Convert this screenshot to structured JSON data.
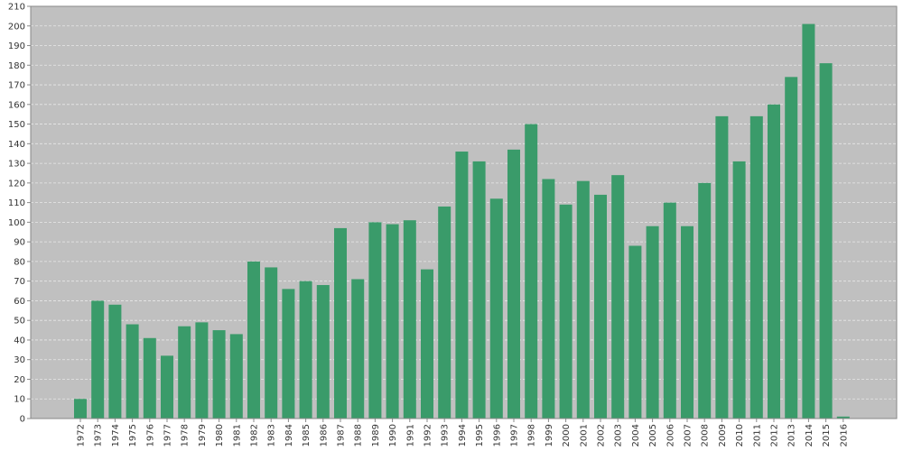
{
  "colors": {
    "plot_background": "#c0c0c0",
    "bar": "#3a9b6a",
    "grid": "#e8e8e8",
    "axis": "#888888",
    "text": "#333333"
  },
  "chart_data": {
    "type": "bar",
    "title": "",
    "xlabel": "",
    "ylabel": "",
    "ylim": [
      0,
      210
    ],
    "yticks": [
      0,
      10,
      20,
      30,
      40,
      50,
      60,
      70,
      80,
      90,
      100,
      110,
      120,
      130,
      140,
      150,
      160,
      170,
      180,
      190,
      200,
      210
    ],
    "grid": true,
    "legend": "none",
    "x_label_orientation": "vertical",
    "categories": [
      "1972",
      "1973",
      "1974",
      "1975",
      "1976",
      "1977",
      "1978",
      "1979",
      "1980",
      "1981",
      "1982",
      "1983",
      "1984",
      "1985",
      "1986",
      "1987",
      "1988",
      "1989",
      "1990",
      "1991",
      "1992",
      "1993",
      "1994",
      "1995",
      "1996",
      "1997",
      "1998",
      "1999",
      "2000",
      "2001",
      "2002",
      "2003",
      "2004",
      "2005",
      "2006",
      "2007",
      "2008",
      "2009",
      "2010",
      "2011",
      "2012",
      "2013",
      "2014",
      "2015",
      "2016"
    ],
    "values": [
      10,
      60,
      58,
      48,
      41,
      32,
      47,
      49,
      45,
      43,
      80,
      77,
      66,
      70,
      68,
      97,
      71,
      100,
      99,
      101,
      76,
      108,
      136,
      131,
      112,
      137,
      150,
      122,
      109,
      121,
      114,
      124,
      88,
      98,
      110,
      98,
      120,
      154,
      131,
      154,
      160,
      174,
      201,
      181,
      1
    ]
  }
}
